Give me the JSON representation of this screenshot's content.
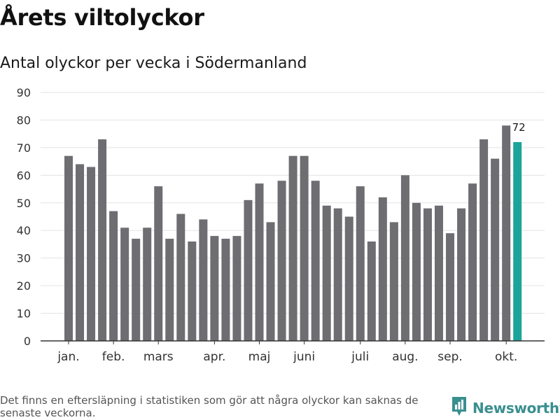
{
  "title": "Årets viltolyckor",
  "subtitle": "Antal olyckor per vecka i Södermanland",
  "footnote": "Det finns en eftersläpning i statistiken som gör att några olyckor kan saknas de senaste veckorna.",
  "brand": {
    "name": "Newsworthy",
    "icon": "newsworthy-logo-icon",
    "color": "#3a8f8f"
  },
  "chart_data": {
    "type": "bar",
    "title": "Antal olyckor per vecka i Södermanland",
    "xlabel": "",
    "ylabel": "",
    "ylim": [
      0,
      90
    ],
    "yticks": [
      0,
      10,
      20,
      30,
      40,
      50,
      60,
      70,
      80,
      90
    ],
    "values": [
      67,
      64,
      63,
      73,
      47,
      41,
      37,
      41,
      56,
      37,
      46,
      36,
      44,
      38,
      37,
      38,
      51,
      57,
      43,
      58,
      67,
      67,
      58,
      49,
      48,
      45,
      56,
      36,
      52,
      43,
      60,
      50,
      48,
      49,
      39,
      48,
      57,
      73,
      66,
      78,
      72
    ],
    "month_labels": [
      {
        "label": "jan.",
        "bar_index": 0
      },
      {
        "label": "feb.",
        "bar_index": 4
      },
      {
        "label": "mars",
        "bar_index": 8
      },
      {
        "label": "apr.",
        "bar_index": 13
      },
      {
        "label": "maj",
        "bar_index": 17
      },
      {
        "label": "juni",
        "bar_index": 21
      },
      {
        "label": "juli",
        "bar_index": 26
      },
      {
        "label": "aug.",
        "bar_index": 30
      },
      {
        "label": "sep.",
        "bar_index": 34
      },
      {
        "label": "okt.",
        "bar_index": 39
      }
    ],
    "highlight": {
      "bar_index": 40,
      "label": "72"
    },
    "colors": {
      "bar": "#6e6d72",
      "highlight": "#1ba59a",
      "grid": "#e3e3e3",
      "axis": "#333333"
    },
    "grid": true
  }
}
